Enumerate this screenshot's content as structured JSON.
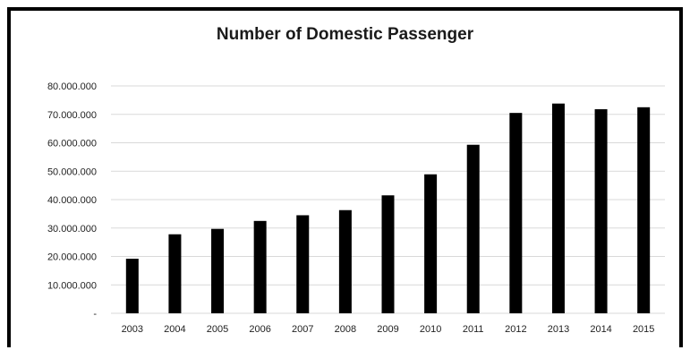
{
  "chart_data": {
    "type": "bar",
    "title": "Number of Domestic Passenger",
    "xlabel": "",
    "ylabel": "",
    "categories": [
      "2003",
      "2004",
      "2005",
      "2006",
      "2007",
      "2008",
      "2009",
      "2010",
      "2011",
      "2012",
      "2013",
      "2014",
      "2015"
    ],
    "values": [
      19200000,
      27800000,
      29700000,
      32500000,
      34500000,
      36300000,
      41500000,
      48900000,
      59300000,
      70500000,
      73800000,
      71800000,
      72500000
    ],
    "ylim": [
      0,
      80000000
    ],
    "yticks": [
      0,
      10000000,
      20000000,
      30000000,
      40000000,
      50000000,
      60000000,
      70000000,
      80000000
    ],
    "ytick_labels": [
      "-",
      "10.000.000",
      "20.000.000",
      "30.000.000",
      "40.000.000",
      "50.000.000",
      "60.000.000",
      "70.000.000",
      "80.000.000"
    ],
    "grid": true,
    "legend": "none",
    "bar_color": "#000000",
    "grid_color": "#d9d9d9"
  }
}
